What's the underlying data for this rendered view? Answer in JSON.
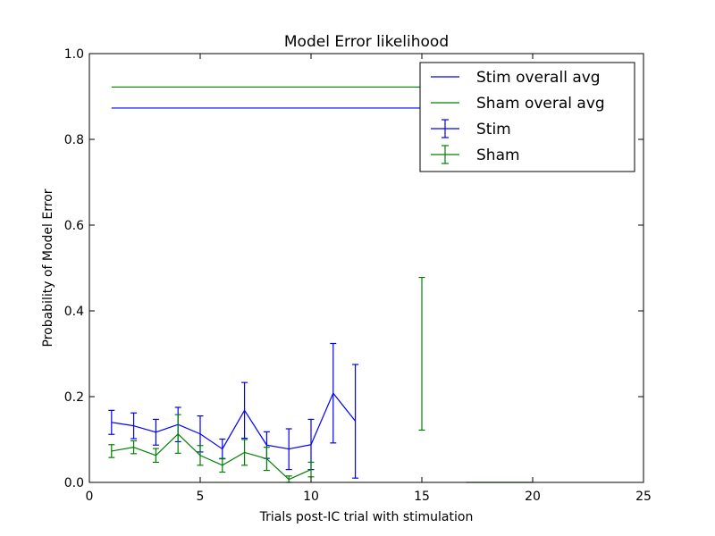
{
  "chart_data": {
    "type": "line",
    "title": "Model Error likelihood",
    "xlabel": "Trials post-IC trial with stimulation",
    "ylabel": "Probability of Model Error",
    "xlim": [
      0,
      25
    ],
    "ylim": [
      0.0,
      1.0
    ],
    "xticks": [
      "0",
      "5",
      "10",
      "15",
      "20",
      "25"
    ],
    "xtick_values": [
      0,
      5,
      10,
      15,
      20,
      25
    ],
    "yticks": [
      "0.0",
      "0.2",
      "0.4",
      "0.6",
      "0.8",
      "1.0"
    ],
    "ytick_values": [
      0.0,
      0.2,
      0.4,
      0.6,
      0.8,
      1.0
    ],
    "grid": false,
    "legend_position": "top-right",
    "colors": {
      "stim": "#0000ff",
      "sham": "#008000"
    },
    "legend": [
      {
        "label": "Stim overall avg",
        "color": "#0000ff",
        "kind": "line"
      },
      {
        "label": "Sham overal avg",
        "color": "#008000",
        "kind": "line"
      },
      {
        "label": "Stim",
        "color": "#0000ff",
        "kind": "errorbar"
      },
      {
        "label": "Sham",
        "color": "#008000",
        "kind": "errorbar"
      }
    ],
    "hlines": [
      {
        "series": "Stim overall avg",
        "y": 0.873,
        "x_start": 1,
        "x_end": 20,
        "color": "#0000ff"
      },
      {
        "series": "Sham overal avg",
        "y": 0.922,
        "x_start": 1,
        "x_end": 20,
        "color": "#008000"
      }
    ],
    "series": [
      {
        "name": "Stim",
        "color": "#0000ff",
        "points": [
          {
            "x": 1,
            "y": 0.14,
            "lo": 0.112,
            "hi": 0.168
          },
          {
            "x": 2,
            "y": 0.132,
            "lo": 0.102,
            "hi": 0.162
          },
          {
            "x": 3,
            "y": 0.117,
            "lo": 0.087,
            "hi": 0.147
          },
          {
            "x": 4,
            "y": 0.135,
            "lo": 0.095,
            "hi": 0.175
          },
          {
            "x": 5,
            "y": 0.113,
            "lo": 0.071,
            "hi": 0.155
          },
          {
            "x": 6,
            "y": 0.078,
            "lo": 0.055,
            "hi": 0.101
          },
          {
            "x": 7,
            "y": 0.168,
            "lo": 0.103,
            "hi": 0.233
          },
          {
            "x": 8,
            "y": 0.087,
            "lo": 0.056,
            "hi": 0.118
          },
          {
            "x": 9,
            "y": 0.078,
            "lo": 0.03,
            "hi": 0.125
          },
          {
            "x": 10,
            "y": 0.088,
            "lo": 0.03,
            "hi": 0.147
          },
          {
            "x": 11,
            "y": 0.208,
            "lo": 0.092,
            "hi": 0.324
          },
          {
            "x": 12,
            "y": 0.143,
            "lo": 0.01,
            "hi": 0.275
          }
        ]
      },
      {
        "name": "Sham",
        "color": "#008000",
        "points": [
          {
            "x": 1,
            "y": 0.073,
            "lo": 0.058,
            "hi": 0.088
          },
          {
            "x": 2,
            "y": 0.082,
            "lo": 0.067,
            "hi": 0.097
          },
          {
            "x": 3,
            "y": 0.063,
            "lo": 0.047,
            "hi": 0.079
          },
          {
            "x": 4,
            "y": 0.113,
            "lo": 0.068,
            "hi": 0.158
          },
          {
            "x": 5,
            "y": 0.063,
            "lo": 0.04,
            "hi": 0.086
          },
          {
            "x": 6,
            "y": 0.04,
            "lo": 0.024,
            "hi": 0.056
          },
          {
            "x": 7,
            "y": 0.07,
            "lo": 0.04,
            "hi": 0.1
          },
          {
            "x": 8,
            "y": 0.055,
            "lo": 0.028,
            "hi": 0.082
          },
          {
            "x": 9,
            "y": 0.007,
            "lo": 0.0,
            "hi": 0.015
          },
          {
            "x": 10,
            "y": 0.03,
            "lo": 0.013,
            "hi": 0.047
          },
          {
            "x": 15,
            "y": 0.3,
            "lo": 0.122,
            "hi": 0.478
          },
          {
            "x": 17,
            "y": 0.0,
            "lo": 0.0,
            "hi": 0.0
          },
          {
            "x": 18,
            "y": 0.0,
            "lo": 0.0,
            "hi": 0.0
          },
          {
            "x": 19,
            "y": 0.0,
            "lo": 0.0,
            "hi": 0.0
          },
          {
            "x": 20,
            "y": 0.0,
            "lo": 0.0,
            "hi": 0.0
          }
        ]
      }
    ]
  }
}
